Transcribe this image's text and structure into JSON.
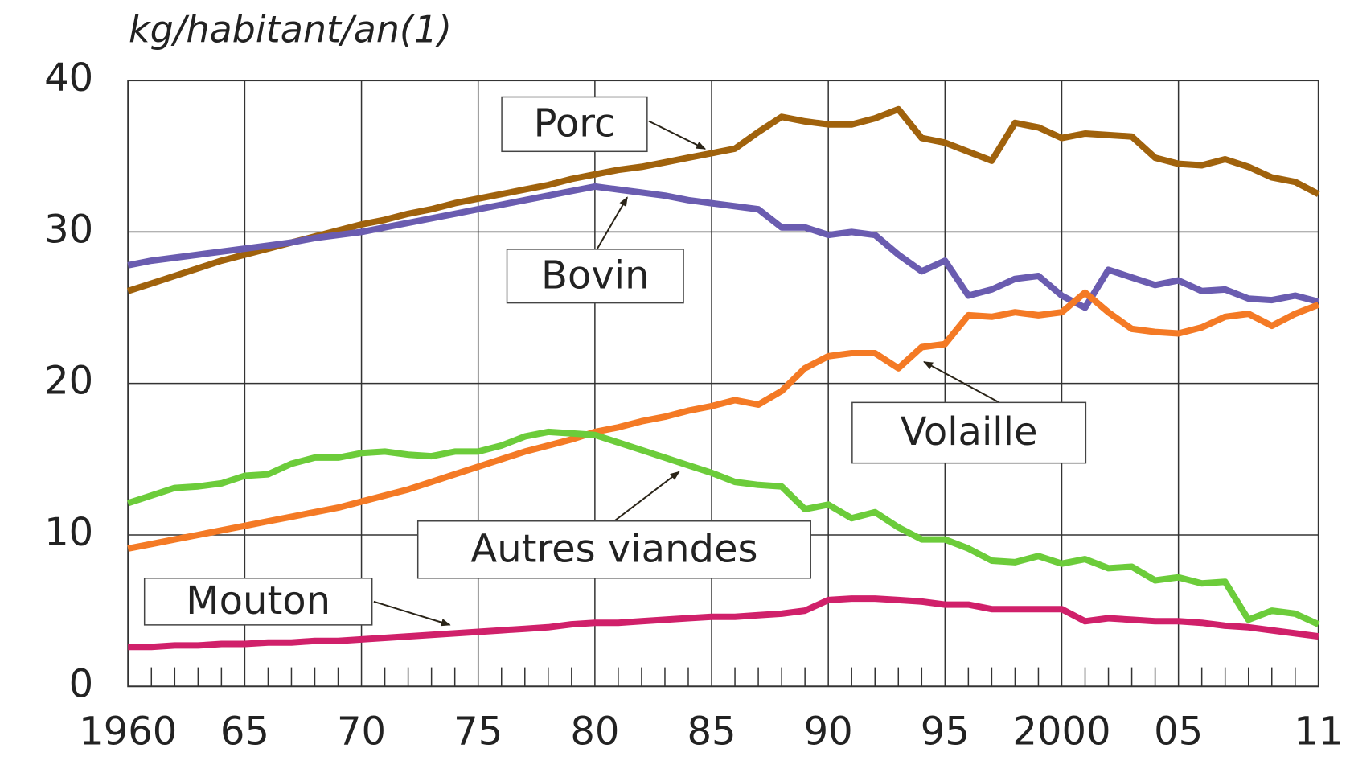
{
  "chart_data": {
    "type": "line",
    "title": "kg/habitant/an(1)",
    "x": [
      1960,
      1961,
      1962,
      1963,
      1964,
      1965,
      1966,
      1967,
      1968,
      1969,
      1970,
      1971,
      1972,
      1973,
      1974,
      1975,
      1976,
      1977,
      1978,
      1979,
      1980,
      1981,
      1982,
      1983,
      1984,
      1985,
      1986,
      1987,
      1988,
      1989,
      1990,
      1991,
      1992,
      1993,
      1994,
      1995,
      1996,
      1997,
      1998,
      1999,
      2000,
      2001,
      2002,
      2003,
      2004,
      2005,
      2006,
      2007,
      2008,
      2009,
      2010,
      2011
    ],
    "series": [
      {
        "name": "Porc",
        "color": "#a0620c",
        "values": [
          26.1,
          26.6,
          27.1,
          27.6,
          28.1,
          28.5,
          28.9,
          29.3,
          29.7,
          30.1,
          30.5,
          30.8,
          31.2,
          31.5,
          31.9,
          32.2,
          32.5,
          32.8,
          33.1,
          33.5,
          33.8,
          34.1,
          34.3,
          34.6,
          34.9,
          35.2,
          35.5,
          36.6,
          37.6,
          37.3,
          37.1,
          37.1,
          37.5,
          38.1,
          36.2,
          35.9,
          35.3,
          34.7,
          37.2,
          36.9,
          36.2,
          36.5,
          36.4,
          36.3,
          34.9,
          34.5,
          34.4,
          34.8,
          34.3,
          33.6,
          33.3,
          32.5
        ]
      },
      {
        "name": "Bovin",
        "color": "#6a5cb0",
        "values": [
          27.8,
          28.1,
          28.3,
          28.5,
          28.7,
          28.9,
          29.1,
          29.3,
          29.6,
          29.8,
          30.0,
          30.3,
          30.6,
          30.9,
          31.2,
          31.5,
          31.8,
          32.1,
          32.4,
          32.7,
          33.0,
          32.8,
          32.6,
          32.4,
          32.1,
          31.9,
          31.7,
          31.5,
          30.3,
          30.3,
          29.8,
          30.0,
          29.8,
          28.5,
          27.4,
          28.1,
          25.8,
          26.2,
          26.9,
          27.1,
          25.8,
          25.0,
          27.5,
          27.0,
          26.5,
          26.8,
          26.1,
          26.2,
          25.6,
          25.5,
          25.8,
          25.4
        ]
      },
      {
        "name": "Volaille",
        "color": "#f47a25",
        "values": [
          9.1,
          9.4,
          9.7,
          10.0,
          10.3,
          10.6,
          10.9,
          11.2,
          11.5,
          11.8,
          12.2,
          12.6,
          13.0,
          13.5,
          14.0,
          14.5,
          15.0,
          15.5,
          15.9,
          16.3,
          16.8,
          17.1,
          17.5,
          17.8,
          18.2,
          18.5,
          18.9,
          18.6,
          19.5,
          21.0,
          21.8,
          22.0,
          22.0,
          21.0,
          22.4,
          22.6,
          24.5,
          24.4,
          24.7,
          24.5,
          24.7,
          26.0,
          24.7,
          23.6,
          23.4,
          23.3,
          23.7,
          24.4,
          24.6,
          23.8,
          24.6,
          25.2
        ]
      },
      {
        "name": "Autres viandes",
        "color": "#6ccc3a",
        "values": [
          12.1,
          12.6,
          13.1,
          13.2,
          13.4,
          13.9,
          14.0,
          14.7,
          15.1,
          15.1,
          15.4,
          15.5,
          15.3,
          15.2,
          15.5,
          15.5,
          15.9,
          16.5,
          16.8,
          16.7,
          16.6,
          16.1,
          15.6,
          15.1,
          14.6,
          14.1,
          13.5,
          13.3,
          13.2,
          11.7,
          12.0,
          11.1,
          11.5,
          10.5,
          9.7,
          9.7,
          9.1,
          8.3,
          8.2,
          8.6,
          8.1,
          8.4,
          7.8,
          7.9,
          7.0,
          7.2,
          6.8,
          6.9,
          4.4,
          5.0,
          4.8,
          4.1
        ]
      },
      {
        "name": "Mouton",
        "color": "#d0206a",
        "values": [
          2.6,
          2.6,
          2.7,
          2.7,
          2.8,
          2.8,
          2.9,
          2.9,
          3.0,
          3.0,
          3.1,
          3.2,
          3.3,
          3.4,
          3.5,
          3.6,
          3.7,
          3.8,
          3.9,
          4.1,
          4.2,
          4.2,
          4.3,
          4.4,
          4.5,
          4.6,
          4.6,
          4.7,
          4.8,
          5.0,
          5.7,
          5.8,
          5.8,
          5.7,
          5.6,
          5.4,
          5.4,
          5.1,
          5.1,
          5.1,
          5.1,
          4.3,
          4.5,
          4.4,
          4.3,
          4.3,
          4.2,
          4.0,
          3.9,
          3.7,
          3.5,
          3.3
        ]
      }
    ],
    "xlim": [
      1960,
      2011
    ],
    "xticks": [
      1960,
      {
        "value": 1965,
        "label": "65"
      },
      {
        "value": 1970,
        "label": "70"
      },
      {
        "value": 1975,
        "label": "75"
      },
      {
        "value": 1980,
        "label": "80"
      },
      {
        "value": 1985,
        "label": "85"
      },
      {
        "value": 1990,
        "label": "90"
      },
      {
        "value": 1995,
        "label": "95"
      },
      2000,
      {
        "value": 2005,
        "label": "05"
      },
      {
        "value": 2011,
        "label": "11"
      }
    ],
    "xminorticks": [
      1961,
      1962,
      1963,
      1964,
      1966,
      1967,
      1968,
      1969,
      1971,
      1972,
      1973,
      1974,
      1976,
      1977,
      1978,
      1979,
      1981,
      1982,
      1983,
      1984,
      1986,
      1987,
      1988,
      1989,
      1991,
      1992,
      1993,
      1994,
      1996,
      1997,
      1998,
      1999,
      2001,
      2002,
      2003,
      2004,
      2006,
      2007,
      2008,
      2009,
      2010
    ],
    "ylim": [
      0,
      40
    ],
    "yticks": [
      0,
      10,
      20,
      30,
      40
    ],
    "grid": true
  }
}
